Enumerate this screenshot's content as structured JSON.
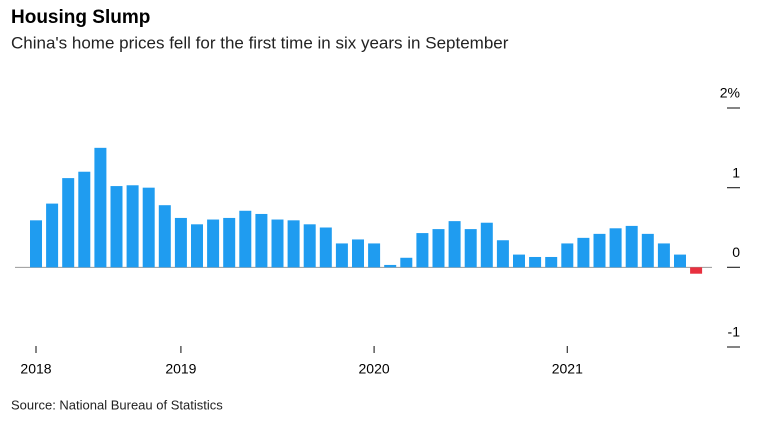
{
  "chart_data": {
    "type": "bar",
    "title": "Housing Slump",
    "subtitle": "China's home prices fell for the first time in six years in September",
    "source": "Source: National Bureau of Statistics",
    "categories": [
      "2018",
      null,
      null,
      null,
      null,
      null,
      null,
      null,
      null,
      "2019",
      null,
      null,
      null,
      null,
      null,
      null,
      null,
      null,
      null,
      null,
      null,
      "2020",
      null,
      null,
      null,
      null,
      null,
      null,
      null,
      null,
      null,
      null,
      null,
      "2021",
      null,
      null,
      null,
      null,
      null,
      null,
      null,
      null
    ],
    "values": [
      0.59,
      0.8,
      1.12,
      1.2,
      1.5,
      1.02,
      1.03,
      1.0,
      0.78,
      0.62,
      0.54,
      0.6,
      0.62,
      0.71,
      0.67,
      0.6,
      0.59,
      0.54,
      0.5,
      0.3,
      0.35,
      0.3,
      0.03,
      0.12,
      0.43,
      0.48,
      0.58,
      0.48,
      0.56,
      0.34,
      0.16,
      0.13,
      0.13,
      0.3,
      0.37,
      0.42,
      0.49,
      0.52,
      0.42,
      0.3,
      0.16,
      -0.08
    ],
    "color": "#1f9cf0",
    "negative_color": "#e8303f",
    "ylim": [
      -1,
      2
    ],
    "yticks": [
      {
        "value": 2,
        "label": "2%"
      },
      1,
      0,
      -1
    ]
  }
}
